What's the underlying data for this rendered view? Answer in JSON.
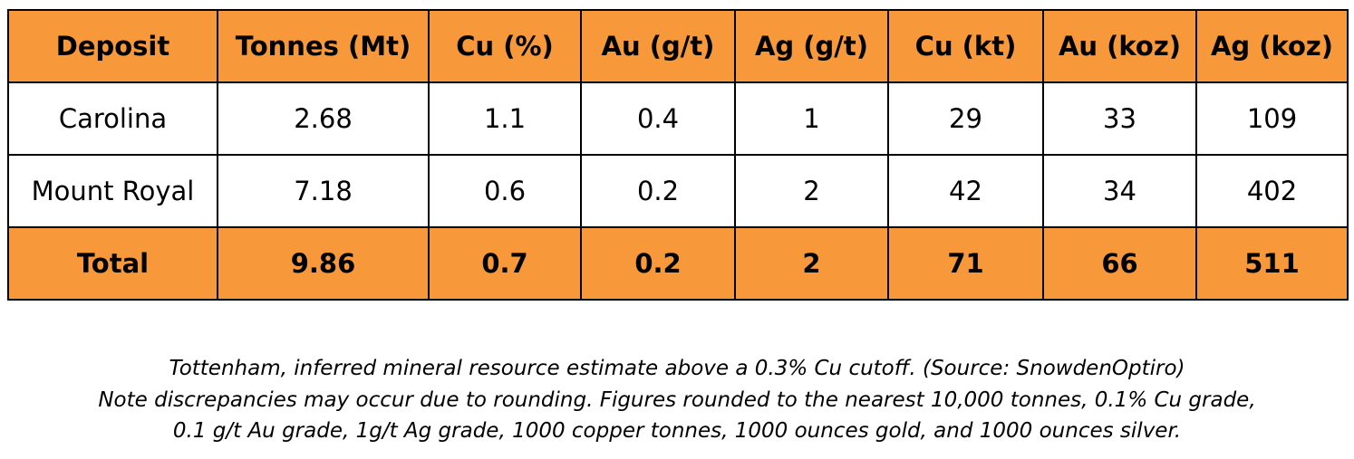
{
  "colors": {
    "header_fill": "#f7983a",
    "border": "#000000",
    "body_fill": "#ffffff"
  },
  "table": {
    "headers": [
      "Deposit",
      "Tonnes (Mt)",
      "Cu (%)",
      "Au (g/t)",
      "Ag (g/t)",
      "Cu (kt)",
      "Au (koz)",
      "Ag (koz)"
    ],
    "rows": [
      [
        "Carolina",
        "2.68",
        "1.1",
        "0.4",
        "1",
        "29",
        "33",
        "109"
      ],
      [
        "Mount Royal",
        "7.18",
        "0.6",
        "0.2",
        "2",
        "42",
        "34",
        "402"
      ]
    ],
    "total": [
      "Total",
      "9.86",
      "0.7",
      "0.2",
      "2",
      "71",
      "66",
      "511"
    ]
  },
  "caption": {
    "line1": "Tottenham, inferred mineral resource estimate above a 0.3% Cu cutoff. (Source: SnowdenOptiro)",
    "line2": "Note discrepancies may occur due to rounding.  Figures rounded to the nearest 10,000 tonnes, 0.1% Cu grade,",
    "line3": "0.1 g/t Au grade, 1g/t Ag grade, 1000 copper tonnes, 1000 ounces gold, and 1000 ounces silver."
  }
}
